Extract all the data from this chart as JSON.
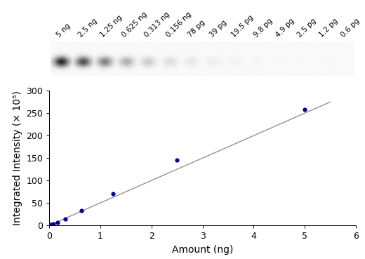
{
  "gel_labels": [
    "5 ng",
    "2.5 ng",
    "1.25 ng",
    "0.625 ng",
    "0.313 ng",
    "0.156 ng",
    "78 pg",
    "39 pg",
    "19.5 pg",
    "9.8 pg",
    "4.9 pg",
    "2.5 pg",
    "1.2 pg",
    "0.6 pg"
  ],
  "x_data": [
    5,
    2.5,
    1.25,
    0.625,
    0.313,
    0.156,
    0.078,
    0.039,
    0.0195,
    0.0098,
    0.0049,
    0.0025,
    0.0012,
    0.0006
  ],
  "y_data": [
    258,
    145,
    70,
    33,
    14,
    7,
    3,
    2,
    1,
    0.5,
    0.3,
    0.2,
    0.1,
    0.05
  ],
  "rel_intensities": [
    1.0,
    0.82,
    0.58,
    0.36,
    0.22,
    0.14,
    0.09,
    0.065,
    0.045,
    0.025,
    0.015,
    0.01,
    0.007,
    0.004
  ],
  "xlabel": "Amount (ng)",
  "ylabel": "Integrated Intensity (× 10⁵)",
  "xlim": [
    0,
    6
  ],
  "ylim": [
    0,
    300
  ],
  "xticks": [
    0,
    1,
    2,
    3,
    4,
    5,
    6
  ],
  "yticks": [
    0,
    50,
    100,
    150,
    200,
    250,
    300
  ],
  "dot_color": "#00008B",
  "line_color": "#888888",
  "bg_color": "#ffffff",
  "axis_fontsize": 10,
  "tick_fontsize": 9,
  "label_fontsize": 7.5,
  "line_x": [
    0,
    5.5
  ],
  "line_y": [
    0,
    275
  ]
}
